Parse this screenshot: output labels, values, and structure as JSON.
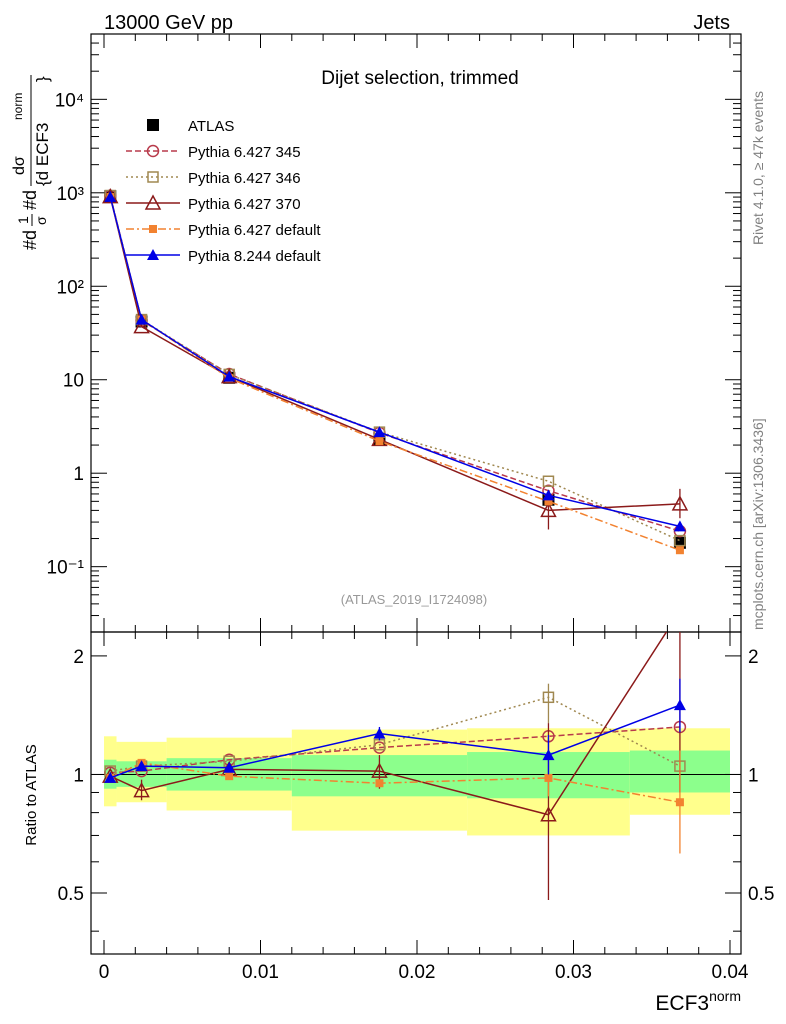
{
  "header": {
    "left": "13000 GeV pp",
    "right": "Jets"
  },
  "side_labels": {
    "rivet": "Rivet 4.1.0, ≥ 47k events",
    "mcplots": "mcplots.cern.ch [arXiv:1306.3436]"
  },
  "chart_data": {
    "type": "line",
    "title": "Dijet selection, trimmed",
    "analysis_label": "(ATLAS_2019_I1724098)",
    "xlabel": "ECF3",
    "xlabel_sup": "norm",
    "ylabel_main": "#d1/σ #d dσ / {d ECF3 norm}",
    "ylabel_ratio": "Ratio to ATLAS",
    "xlim": [
      0,
      0.04
    ],
    "ylim_main": [
      0.02,
      50000
    ],
    "ylim_ratio": [
      0.35,
      2.3
    ],
    "x_ticks": [
      "0",
      "0.01",
      "0.02",
      "0.03",
      "0.04"
    ],
    "y_ticks_main": [
      "10⁻¹",
      "1",
      "10",
      "10²",
      "10³",
      "10⁴"
    ],
    "y_ticks_ratio": [
      "0.5",
      "1",
      "2"
    ],
    "bin_edges": [
      0,
      0.0008,
      0.004,
      0.012,
      0.0232,
      0.0336,
      0.04
    ],
    "x": [
      0.0004,
      0.0024,
      0.008,
      0.0176,
      0.0284,
      0.0368
    ],
    "band_inner_lo": [
      0.92,
      0.93,
      0.91,
      0.88,
      0.87,
      0.9
    ],
    "band_inner_hi": [
      1.09,
      1.08,
      1.1,
      1.12,
      1.14,
      1.15
    ],
    "band_outer_lo": [
      0.83,
      0.85,
      0.81,
      0.72,
      0.7,
      0.79
    ],
    "band_outer_hi": [
      1.25,
      1.21,
      1.24,
      1.3,
      1.31,
      1.31
    ],
    "series": [
      {
        "name": "ATLAS",
        "color": "#000000",
        "marker": "filled-square",
        "dash": "",
        "values": [
          920,
          42,
          10.5,
          2.3,
          0.52,
          0.18
        ],
        "ratio": [
          1,
          1,
          1,
          1,
          1,
          1
        ]
      },
      {
        "name": "Pythia 6.427 345",
        "color": "#b83a4b",
        "marker": "open-circle",
        "dash": "6,3",
        "values": [
          930,
          43,
          11.5,
          2.7,
          0.65,
          0.24
        ],
        "ratio": [
          1.01,
          1.02,
          1.09,
          1.17,
          1.25,
          1.32
        ]
      },
      {
        "name": "Pythia 6.427 346",
        "color": "#a08850",
        "marker": "open-square",
        "dash": "2,3",
        "values": [
          935,
          44,
          11.4,
          2.75,
          0.82,
          0.19
        ],
        "ratio": [
          1.02,
          1.05,
          1.08,
          1.19,
          1.57,
          1.05
        ]
      },
      {
        "name": "Pythia 6.427 370",
        "color": "#8b1a1a",
        "marker": "open-triangle",
        "dash": "",
        "values": [
          910,
          37,
          10.8,
          2.3,
          0.4,
          0.47
        ],
        "ratio": [
          0.99,
          0.91,
          1.03,
          1.02,
          0.79,
          2.6
        ]
      },
      {
        "name": "Pythia 6.427 default",
        "color": "#f28230",
        "marker": "filled-square-small",
        "dash": "8,3,2,3",
        "values": [
          900,
          44,
          10.4,
          2.2,
          0.5,
          0.15
        ],
        "ratio": [
          0.98,
          1.07,
          0.99,
          0.95,
          0.98,
          0.85
        ]
      },
      {
        "name": "Pythia 8.244 default",
        "color": "#0000e6",
        "marker": "filled-triangle",
        "dash": "",
        "values": [
          905,
          44,
          10.8,
          2.75,
          0.58,
          0.27
        ],
        "ratio": [
          0.98,
          1.05,
          1.04,
          1.27,
          1.12,
          1.5
        ]
      }
    ],
    "legend_position": "top-left"
  }
}
